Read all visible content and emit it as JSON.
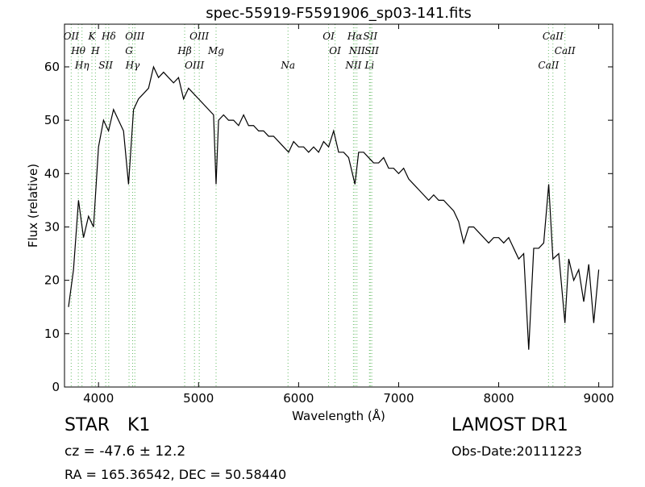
{
  "chart_data": {
    "type": "line",
    "title": "spec-55919-F5591906_sp03-141.fits",
    "x_label": "Wavelength (Å)",
    "y_label": "Flux (relative)",
    "color": "#000000",
    "xlim": [
      3660,
      9140
    ],
    "ylim": [
      0,
      68
    ],
    "xticks": [
      4000,
      5000,
      6000,
      7000,
      8000,
      9000
    ],
    "yticks": [
      0,
      10,
      20,
      30,
      40,
      50,
      60
    ],
    "x": [
      3700,
      3750,
      3800,
      3850,
      3900,
      3950,
      4000,
      4050,
      4100,
      4150,
      4200,
      4250,
      4300,
      4350,
      4400,
      4450,
      4500,
      4550,
      4600,
      4650,
      4700,
      4750,
      4800,
      4850,
      4900,
      4950,
      5000,
      5050,
      5100,
      5150,
      5175,
      5200,
      5250,
      5300,
      5350,
      5400,
      5450,
      5500,
      5550,
      5600,
      5650,
      5700,
      5750,
      5800,
      5850,
      5900,
      5950,
      6000,
      6050,
      6100,
      6150,
      6200,
      6250,
      6300,
      6350,
      6400,
      6450,
      6500,
      6563,
      6600,
      6650,
      6700,
      6750,
      6800,
      6850,
      6900,
      6950,
      7000,
      7050,
      7100,
      7150,
      7200,
      7250,
      7300,
      7350,
      7400,
      7450,
      7500,
      7550,
      7600,
      7650,
      7700,
      7750,
      7800,
      7850,
      7900,
      7950,
      8000,
      8050,
      8100,
      8150,
      8200,
      8250,
      8300,
      8350,
      8400,
      8450,
      8500,
      8542,
      8600,
      8662,
      8700,
      8750,
      8800,
      8850,
      8900,
      8950,
      9000
    ],
    "values": [
      15,
      22,
      35,
      28,
      32,
      30,
      45,
      50,
      48,
      52,
      50,
      48,
      38,
      52,
      54,
      55,
      56,
      60,
      58,
      59,
      58,
      57,
      58,
      54,
      56,
      55,
      54,
      53,
      52,
      51,
      38,
      50,
      51,
      50,
      50,
      49,
      51,
      49,
      49,
      48,
      48,
      47,
      47,
      46,
      45,
      44,
      46,
      45,
      45,
      44,
      45,
      44,
      46,
      45,
      48,
      44,
      44,
      43,
      38,
      44,
      44,
      43,
      42,
      42,
      43,
      41,
      41,
      40,
      41,
      39,
      38,
      37,
      36,
      35,
      36,
      35,
      35,
      34,
      33,
      31,
      27,
      30,
      30,
      29,
      28,
      27,
      28,
      28,
      27,
      28,
      26,
      24,
      25,
      7,
      26,
      26,
      27,
      38,
      24,
      25,
      12,
      24,
      20,
      22,
      16,
      23,
      12,
      22
    ],
    "line_color": "#66bb66",
    "lines": [
      {
        "name": "OII",
        "wavelength": 3727
      },
      {
        "name": "Hθ",
        "wavelength": 3798
      },
      {
        "name": "Hη",
        "wavelength": 3835
      },
      {
        "name": "K",
        "wavelength": 3934
      },
      {
        "name": "H",
        "wavelength": 3969
      },
      {
        "name": "SII",
        "wavelength": 4072
      },
      {
        "name": "Hδ",
        "wavelength": 4102
      },
      {
        "name": "G",
        "wavelength": 4305
      },
      {
        "name": "Hγ",
        "wavelength": 4341
      },
      {
        "name": "OIII",
        "wavelength": 4363
      },
      {
        "name": "Hβ",
        "wavelength": 4861
      },
      {
        "name": "OIII",
        "wavelength": 4959
      },
      {
        "name": "OIII",
        "wavelength": 5007
      },
      {
        "name": "Mg",
        "wavelength": 5175
      },
      {
        "name": "Na",
        "wavelength": 5894
      },
      {
        "name": "OI",
        "wavelength": 6300
      },
      {
        "name": "OI",
        "wavelength": 6364
      },
      {
        "name": "NII",
        "wavelength": 6548
      },
      {
        "name": "Hα",
        "wavelength": 6563
      },
      {
        "name": "NII",
        "wavelength": 6583
      },
      {
        "name": "Li",
        "wavelength": 6708
      },
      {
        "name": "SII",
        "wavelength": 6716
      },
      {
        "name": "SII",
        "wavelength": 6731
      },
      {
        "name": "CaII",
        "wavelength": 8498
      },
      {
        "name": "CaII",
        "wavelength": 8542
      },
      {
        "name": "CaII",
        "wavelength": 8662
      }
    ]
  },
  "footer": {
    "class": "STAR",
    "subclass": "K1",
    "release": "LAMOST DR1",
    "cz": "cz = -47.6 ± 12.2",
    "date": "Obs-Date:20111223",
    "coords": "RA = 165.36542, DEC = 50.58440"
  }
}
